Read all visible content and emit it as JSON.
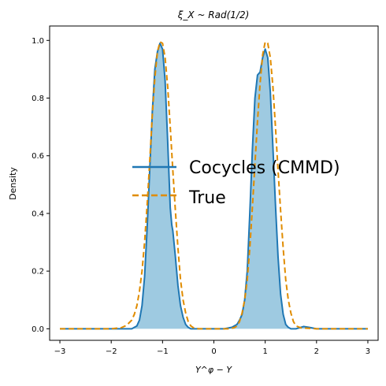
{
  "chart_data": {
    "type": "area",
    "title": "ξ_X ~ Rad(1/2)",
    "xlabel": "Y^φ − Y",
    "ylabel": "Density",
    "xlim": [
      -3.2,
      3.2
    ],
    "ylim": [
      -0.04,
      1.05
    ],
    "xticks": [
      "−3",
      "−2",
      "−1",
      "0",
      "1",
      "2",
      "3"
    ],
    "xtick_values": [
      -3,
      -2,
      -1,
      0,
      1,
      2,
      3
    ],
    "yticks": [
      "0.0",
      "0.2",
      "0.4",
      "0.6",
      "0.8",
      "1.0"
    ],
    "ytick_values": [
      0.0,
      0.2,
      0.4,
      0.6,
      0.8,
      1.0
    ],
    "grid": false,
    "legend_position": "center",
    "series": [
      {
        "name": "Cocycles (CMMD)",
        "style": "solid",
        "color": "#1f77b4",
        "fill": "#9ecae1",
        "x": [
          -3.0,
          -2.0,
          -1.75,
          -1.6,
          -1.5,
          -1.45,
          -1.4,
          -1.35,
          -1.3,
          -1.25,
          -1.2,
          -1.15,
          -1.1,
          -1.05,
          -1.0,
          -0.95,
          -0.9,
          -0.85,
          -0.82,
          -0.8,
          -0.75,
          -0.7,
          -0.65,
          -0.6,
          -0.55,
          -0.5,
          -0.45,
          -0.4,
          -0.35,
          -0.3,
          -0.2,
          0.0,
          0.2,
          0.35,
          0.45,
          0.5,
          0.55,
          0.6,
          0.65,
          0.7,
          0.75,
          0.8,
          0.85,
          0.9,
          0.95,
          1.0,
          1.05,
          1.1,
          1.15,
          1.2,
          1.25,
          1.3,
          1.35,
          1.4,
          1.45,
          1.5,
          1.6,
          1.75,
          1.85,
          2.0,
          3.0
        ],
        "y": [
          0.0,
          0.0,
          0.0,
          0.0,
          0.01,
          0.03,
          0.08,
          0.18,
          0.35,
          0.55,
          0.75,
          0.9,
          0.96,
          0.99,
          0.97,
          0.86,
          0.65,
          0.42,
          0.36,
          0.34,
          0.25,
          0.15,
          0.08,
          0.04,
          0.015,
          0.005,
          0.0,
          0.0,
          0.0,
          0.0,
          0.0,
          0.0,
          0.0,
          0.005,
          0.015,
          0.03,
          0.05,
          0.1,
          0.2,
          0.4,
          0.62,
          0.8,
          0.88,
          0.89,
          0.94,
          0.97,
          0.94,
          0.82,
          0.63,
          0.43,
          0.25,
          0.12,
          0.05,
          0.015,
          0.005,
          0.0,
          0.0,
          0.008,
          0.005,
          0.0,
          0.0
        ]
      },
      {
        "name": "True",
        "style": "dashed",
        "color": "#e08c00",
        "x": [
          -3.0,
          -2.0,
          -1.8,
          -1.7,
          -1.6,
          -1.55,
          -1.5,
          -1.45,
          -1.4,
          -1.35,
          -1.3,
          -1.25,
          -1.2,
          -1.15,
          -1.1,
          -1.05,
          -1.0,
          -0.95,
          -0.9,
          -0.85,
          -0.8,
          -0.75,
          -0.7,
          -0.65,
          -0.6,
          -0.55,
          -0.5,
          -0.45,
          -0.4,
          -0.3,
          0.0,
          0.3,
          0.4,
          0.45,
          0.5,
          0.55,
          0.6,
          0.65,
          0.7,
          0.75,
          0.8,
          0.85,
          0.9,
          0.95,
          1.0,
          1.05,
          1.1,
          1.15,
          1.2,
          1.25,
          1.3,
          1.35,
          1.4,
          1.45,
          1.5,
          1.55,
          1.6,
          1.7,
          2.0,
          3.0
        ],
        "y": [
          0.0,
          0.0,
          0.004,
          0.012,
          0.03,
          0.05,
          0.08,
          0.13,
          0.2,
          0.3,
          0.43,
          0.58,
          0.74,
          0.87,
          0.96,
          0.995,
          0.99,
          0.94,
          0.84,
          0.7,
          0.55,
          0.41,
          0.28,
          0.17,
          0.1,
          0.055,
          0.025,
          0.01,
          0.004,
          0.0,
          0.0,
          0.0,
          0.004,
          0.01,
          0.025,
          0.055,
          0.1,
          0.17,
          0.28,
          0.42,
          0.57,
          0.72,
          0.85,
          0.95,
          0.995,
          0.99,
          0.94,
          0.84,
          0.7,
          0.55,
          0.41,
          0.28,
          0.17,
          0.1,
          0.055,
          0.025,
          0.01,
          0.003,
          0.0,
          0.0
        ]
      }
    ]
  }
}
